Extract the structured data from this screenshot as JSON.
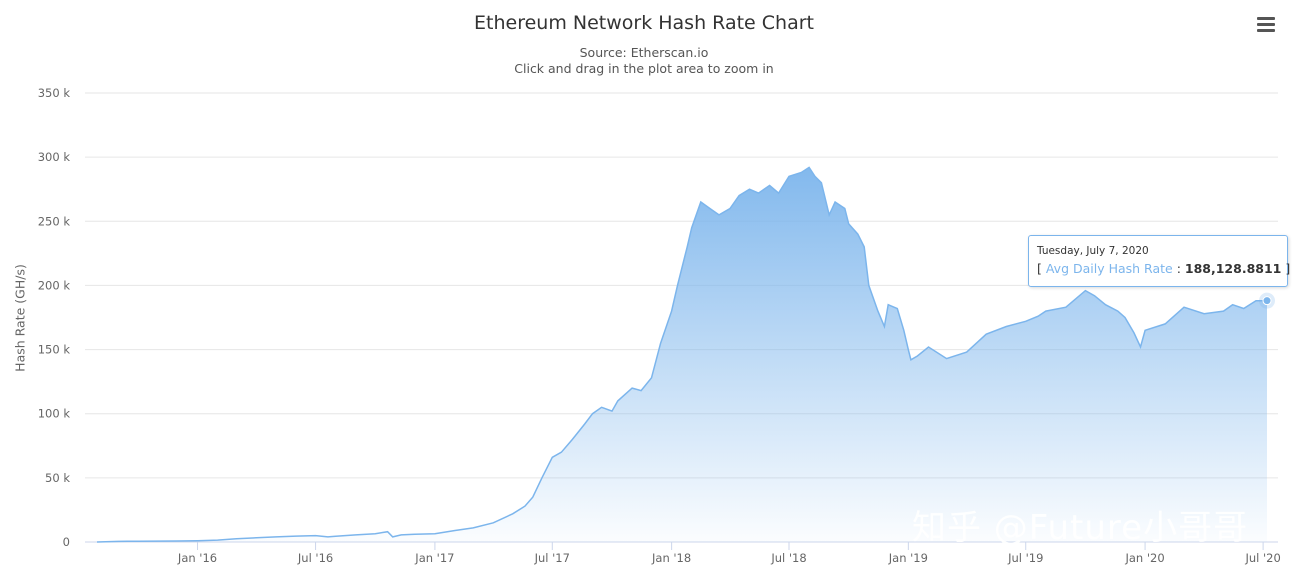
{
  "chart_data": {
    "type": "area",
    "title": "Ethereum Network Hash Rate Chart",
    "subtitle": [
      "Source: Etherscan.io",
      "Click and drag in the plot area to zoom in"
    ],
    "xlabel": "",
    "ylabel": "Hash Rate (GH/s)",
    "ylim": [
      0,
      350000
    ],
    "yticks": [
      0,
      50000,
      100000,
      150000,
      200000,
      250000,
      300000,
      350000
    ],
    "ytick_labels": [
      "0",
      "50 k",
      "100 k",
      "150 k",
      "200 k",
      "250 k",
      "300 k",
      "350 k"
    ],
    "xlim": [
      "2015-07-30",
      "2020-07-07"
    ],
    "xticks": [
      "2016-01-01",
      "2016-07-01",
      "2017-01-01",
      "2017-07-01",
      "2018-01-01",
      "2018-07-01",
      "2019-01-01",
      "2019-07-01",
      "2020-01-01",
      "2020-07-01"
    ],
    "xtick_labels": [
      "Jan '16",
      "Jul '16",
      "Jan '17",
      "Jul '17",
      "Jan '18",
      "Jul '18",
      "Jan '19",
      "Jul '19",
      "Jan '20",
      "Jul '20"
    ],
    "grid": true,
    "legend": "none",
    "color": "#7cb5ec",
    "series": [
      {
        "name": "Avg Daily Hash Rate",
        "points": [
          [
            "2015-07-30",
            0
          ],
          [
            "2015-09-01",
            500
          ],
          [
            "2015-10-01",
            600
          ],
          [
            "2015-11-01",
            700
          ],
          [
            "2015-12-01",
            800
          ],
          [
            "2016-01-01",
            1000
          ],
          [
            "2016-02-01",
            1500
          ],
          [
            "2016-03-01",
            2500
          ],
          [
            "2016-04-01",
            3300
          ],
          [
            "2016-05-01",
            4000
          ],
          [
            "2016-06-01",
            4600
          ],
          [
            "2016-07-01",
            5000
          ],
          [
            "2016-07-20",
            4000
          ],
          [
            "2016-08-01",
            4500
          ],
          [
            "2016-09-01",
            5500
          ],
          [
            "2016-10-01",
            6500
          ],
          [
            "2016-10-20",
            8000
          ],
          [
            "2016-10-28",
            4000
          ],
          [
            "2016-11-10",
            5500
          ],
          [
            "2016-12-01",
            6000
          ],
          [
            "2017-01-01",
            6500
          ],
          [
            "2017-02-01",
            9000
          ],
          [
            "2017-03-01",
            11000
          ],
          [
            "2017-04-01",
            15000
          ],
          [
            "2017-05-01",
            22000
          ],
          [
            "2017-05-20",
            28000
          ],
          [
            "2017-06-01",
            35000
          ],
          [
            "2017-06-15",
            50000
          ],
          [
            "2017-07-01",
            66000
          ],
          [
            "2017-07-15",
            70000
          ],
          [
            "2017-08-01",
            80000
          ],
          [
            "2017-08-20",
            92000
          ],
          [
            "2017-09-01",
            100000
          ],
          [
            "2017-09-15",
            105000
          ],
          [
            "2017-10-01",
            102000
          ],
          [
            "2017-10-10",
            110000
          ],
          [
            "2017-11-01",
            120000
          ],
          [
            "2017-11-15",
            118000
          ],
          [
            "2017-12-01",
            128000
          ],
          [
            "2017-12-15",
            155000
          ],
          [
            "2018-01-01",
            180000
          ],
          [
            "2018-01-10",
            200000
          ],
          [
            "2018-01-25",
            230000
          ],
          [
            "2018-02-01",
            245000
          ],
          [
            "2018-02-15",
            265000
          ],
          [
            "2018-03-01",
            260000
          ],
          [
            "2018-03-15",
            255000
          ],
          [
            "2018-04-01",
            260000
          ],
          [
            "2018-04-15",
            270000
          ],
          [
            "2018-05-01",
            275000
          ],
          [
            "2018-05-15",
            272000
          ],
          [
            "2018-06-01",
            278000
          ],
          [
            "2018-06-15",
            272000
          ],
          [
            "2018-07-01",
            285000
          ],
          [
            "2018-07-20",
            288000
          ],
          [
            "2018-08-01",
            292000
          ],
          [
            "2018-08-10",
            285000
          ],
          [
            "2018-08-20",
            280000
          ],
          [
            "2018-09-01",
            255000
          ],
          [
            "2018-09-10",
            265000
          ],
          [
            "2018-09-25",
            260000
          ],
          [
            "2018-10-01",
            248000
          ],
          [
            "2018-10-15",
            240000
          ],
          [
            "2018-10-25",
            230000
          ],
          [
            "2018-11-01",
            200000
          ],
          [
            "2018-11-15",
            180000
          ],
          [
            "2018-11-25",
            168000
          ],
          [
            "2018-12-01",
            185000
          ],
          [
            "2018-12-15",
            182000
          ],
          [
            "2018-12-25",
            165000
          ],
          [
            "2019-01-01",
            150000
          ],
          [
            "2019-01-05",
            142000
          ],
          [
            "2019-01-15",
            145000
          ],
          [
            "2019-02-01",
            152000
          ],
          [
            "2019-03-01",
            143000
          ],
          [
            "2019-04-01",
            148000
          ],
          [
            "2019-05-01",
            162000
          ],
          [
            "2019-06-01",
            168000
          ],
          [
            "2019-07-01",
            172000
          ],
          [
            "2019-07-20",
            176000
          ],
          [
            "2019-08-01",
            180000
          ],
          [
            "2019-09-01",
            183000
          ],
          [
            "2019-10-01",
            196000
          ],
          [
            "2019-10-15",
            192000
          ],
          [
            "2019-11-01",
            185000
          ],
          [
            "2019-11-20",
            180000
          ],
          [
            "2019-12-01",
            175000
          ],
          [
            "2019-12-15",
            163000
          ],
          [
            "2019-12-25",
            152000
          ],
          [
            "2020-01-01",
            165000
          ],
          [
            "2020-02-01",
            170000
          ],
          [
            "2020-03-01",
            183000
          ],
          [
            "2020-04-01",
            178000
          ],
          [
            "2020-05-01",
            180000
          ],
          [
            "2020-05-15",
            185000
          ],
          [
            "2020-06-01",
            182000
          ],
          [
            "2020-06-20",
            188000
          ],
          [
            "2020-07-07",
            188129
          ]
        ]
      }
    ],
    "tooltip": {
      "date": "Tuesday, July 7, 2020",
      "series_name": "Avg Daily Hash Rate",
      "value": "188,128.8811",
      "point": [
        "2020-07-07",
        188128.8811
      ]
    }
  },
  "watermark": "知乎 @Future小哥哥",
  "menu": {
    "icon": "hamburger-menu-icon"
  }
}
